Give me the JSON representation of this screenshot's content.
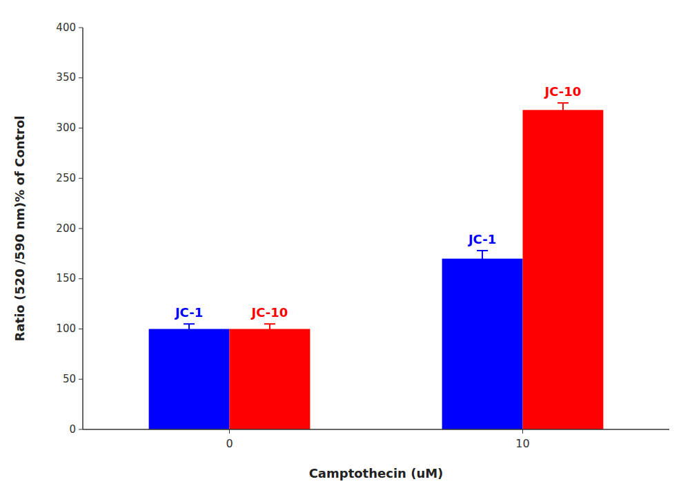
{
  "chart_data": {
    "type": "bar",
    "xlabel": "Camptothecin (uM)",
    "ylabel": "Ratio (520 /590 nm)% of Control",
    "categories": [
      "0",
      "10"
    ],
    "series": [
      {
        "name": "JC-1",
        "color": "#0000FF",
        "values": [
          100,
          170
        ],
        "errors": [
          5,
          8
        ]
      },
      {
        "name": "JC-10",
        "color": "#FF0000",
        "values": [
          100,
          318
        ],
        "errors": [
          5,
          7
        ]
      }
    ],
    "ylim": [
      0,
      400
    ],
    "yticks": [
      0,
      50,
      100,
      150,
      200,
      250,
      300,
      350,
      400
    ],
    "grid": false
  }
}
